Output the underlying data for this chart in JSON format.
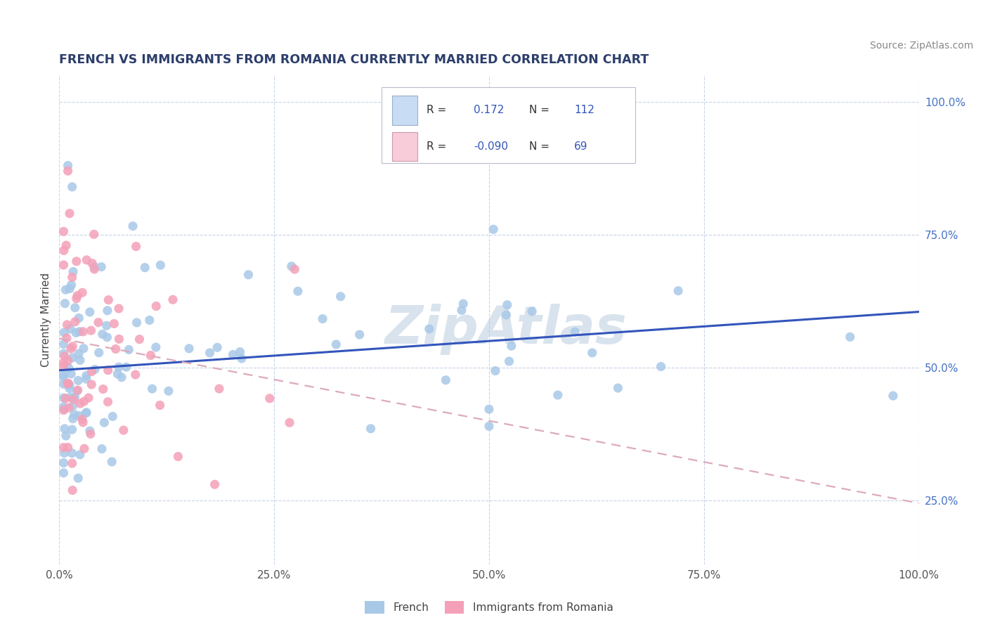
{
  "title": "FRENCH VS IMMIGRANTS FROM ROMANIA CURRENTLY MARRIED CORRELATION CHART",
  "source": "Source: ZipAtlas.com",
  "ylabel": "Currently Married",
  "watermark": "ZipAtlas",
  "r_french": 0.172,
  "n_french": 112,
  "r_romania": -0.09,
  "n_romania": 69,
  "xlim": [
    0.0,
    1.0
  ],
  "ylim": [
    0.13,
    1.05
  ],
  "color_french": "#a8c8e8",
  "color_romania": "#f4a0b8",
  "line_french": "#3355bb",
  "line_romania": "#ddaabb",
  "legend_box_color_french": "#c8dcf4",
  "legend_box_color_romania": "#f8ccd8",
  "background_color": "#ffffff",
  "grid_color": "#c8d4e8",
  "title_color": "#2c3e6b",
  "source_color": "#888888",
  "french_trend_x0": 0.0,
  "french_trend_y0": 0.495,
  "french_trend_x1": 1.0,
  "french_trend_y1": 0.605,
  "romania_trend_x0": 0.0,
  "romania_trend_y0": 0.555,
  "romania_trend_x1": 1.0,
  "romania_trend_y1": 0.245
}
